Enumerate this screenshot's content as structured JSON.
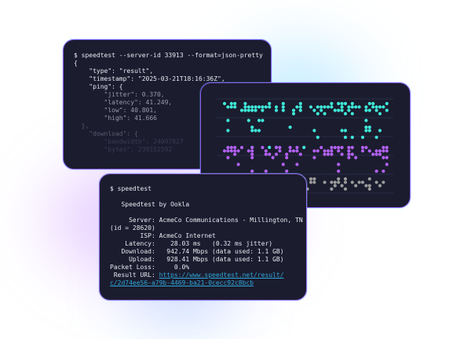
{
  "json_terminal": {
    "command": "$ speedtest --server-id 33913 --format=json-pretty",
    "lines": [
      "{",
      "    \"type\": \"result\",",
      "    \"timestamp\": \"2025-03-21T18:16:36Z\",",
      "    \"ping\": {",
      "        \"jitter\": 0.370,",
      "        \"latency\": 41.249,",
      "        \"low\": 40.801,",
      "        \"high\": 41.666",
      "  },",
      "    \"download\": {",
      "        \"bandwidth\": 24097927",
      "        \"bytes\": 239152592"
    ]
  },
  "chart_card": {
    "colors": {
      "top": "#3ee8d8",
      "middle": "#b060f0",
      "bottom": "#9a9a9a",
      "grid": "#2a2c45"
    }
  },
  "cli_terminal": {
    "command": "$ speedtest",
    "header": "   Speedtest by Ookla",
    "server_line": "     Server: AcmeCo Communications - Millington, TN",
    "server_id": "(id = 28620)",
    "isp": "        ISP: AcmeCo Internet",
    "latency": "    Latency:    28.03 ms   (0.32 ms jitter)",
    "download": "   Download:   942.74 Mbps (data used: 1.1 GB)",
    "upload": "     Upload:   928.41 Mbps (data used: 1.1 GB)",
    "packet_loss": "Packet Loss:     0.0%",
    "result_label": " Result URL: ",
    "result_url_1": "https://www.speedtest.net/result/",
    "result_url_2": "c/2d74ee56-a79b-4469-ba21-0cecc92c8bcb"
  }
}
